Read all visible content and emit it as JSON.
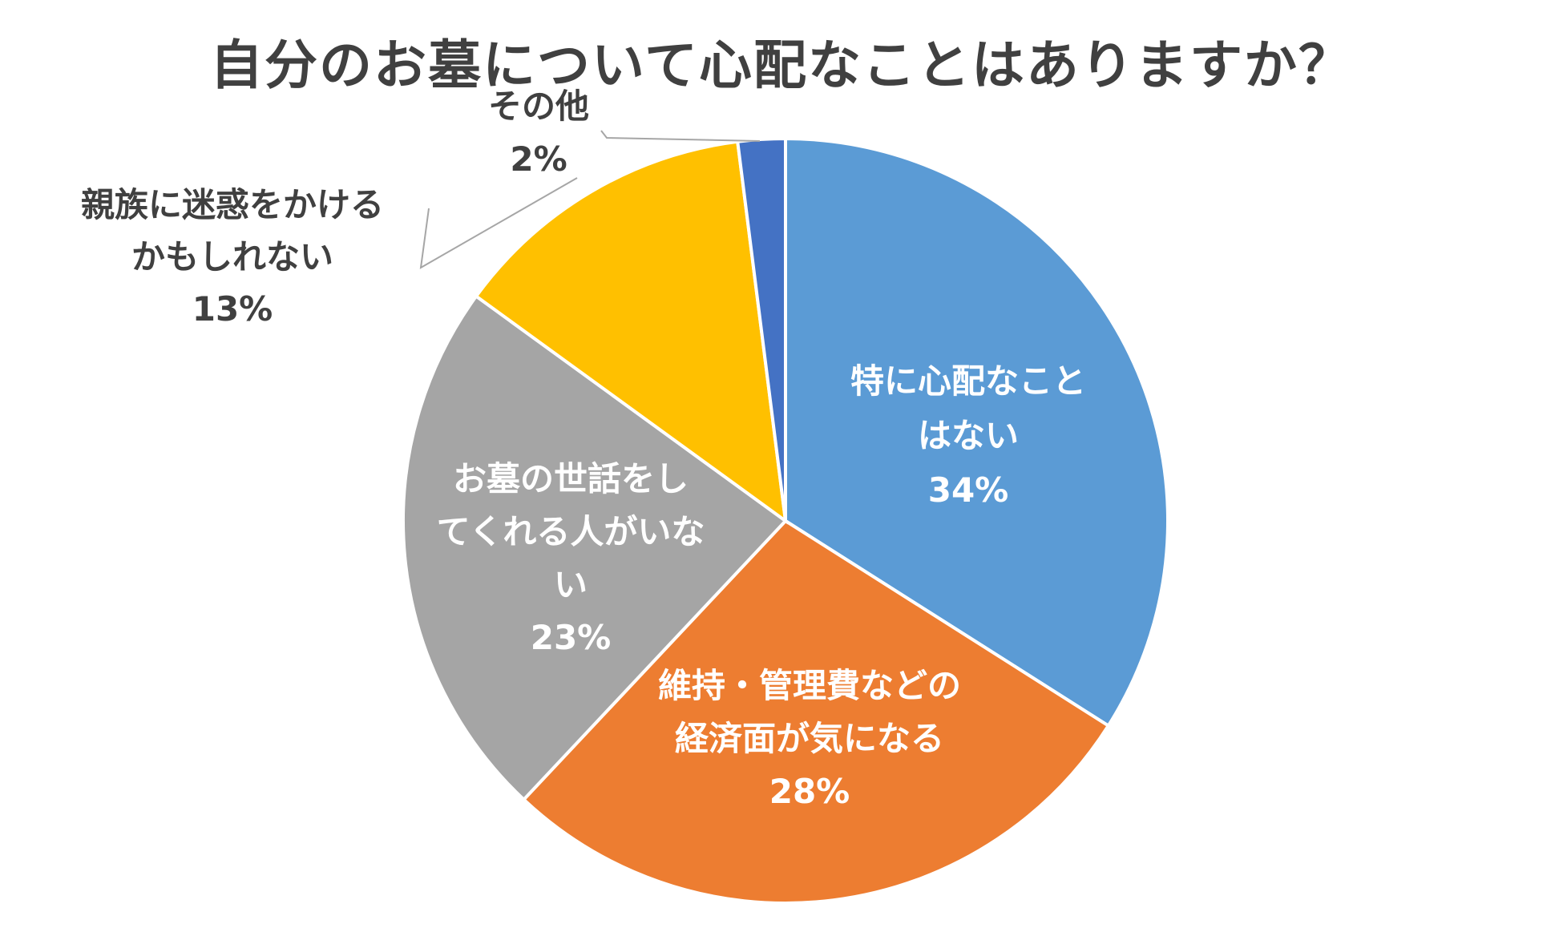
{
  "chart_data": {
    "type": "pie",
    "title": "自分のお墓について心配なことはありますか？",
    "slices": [
      {
        "label": [
          "特に心配なこと",
          "はない"
        ],
        "value": 34,
        "percent_label": "34%",
        "color": "#5b9bd5",
        "label_style": "inside"
      },
      {
        "label": [
          "維持・管理費などの",
          "経済面が気になる"
        ],
        "value": 28,
        "percent_label": "28%",
        "color": "#ed7d31",
        "label_style": "inside"
      },
      {
        "label": [
          "お墓の世話をし",
          "てくれる人がいな",
          "い"
        ],
        "value": 23,
        "percent_label": "23%",
        "color": "#a5a5a5",
        "label_style": "inside"
      },
      {
        "label": [
          "親族に迷惑をかける",
          "かもしれない"
        ],
        "value": 13,
        "percent_label": "13%",
        "color": "#ffc000",
        "label_style": "outside"
      },
      {
        "label": [
          "その他"
        ],
        "value": 2,
        "percent_label": "2%",
        "color": "#4472c4",
        "label_style": "outside"
      }
    ],
    "start_angle": "12 o'clock",
    "direction": "clockwise",
    "legend": "none"
  }
}
